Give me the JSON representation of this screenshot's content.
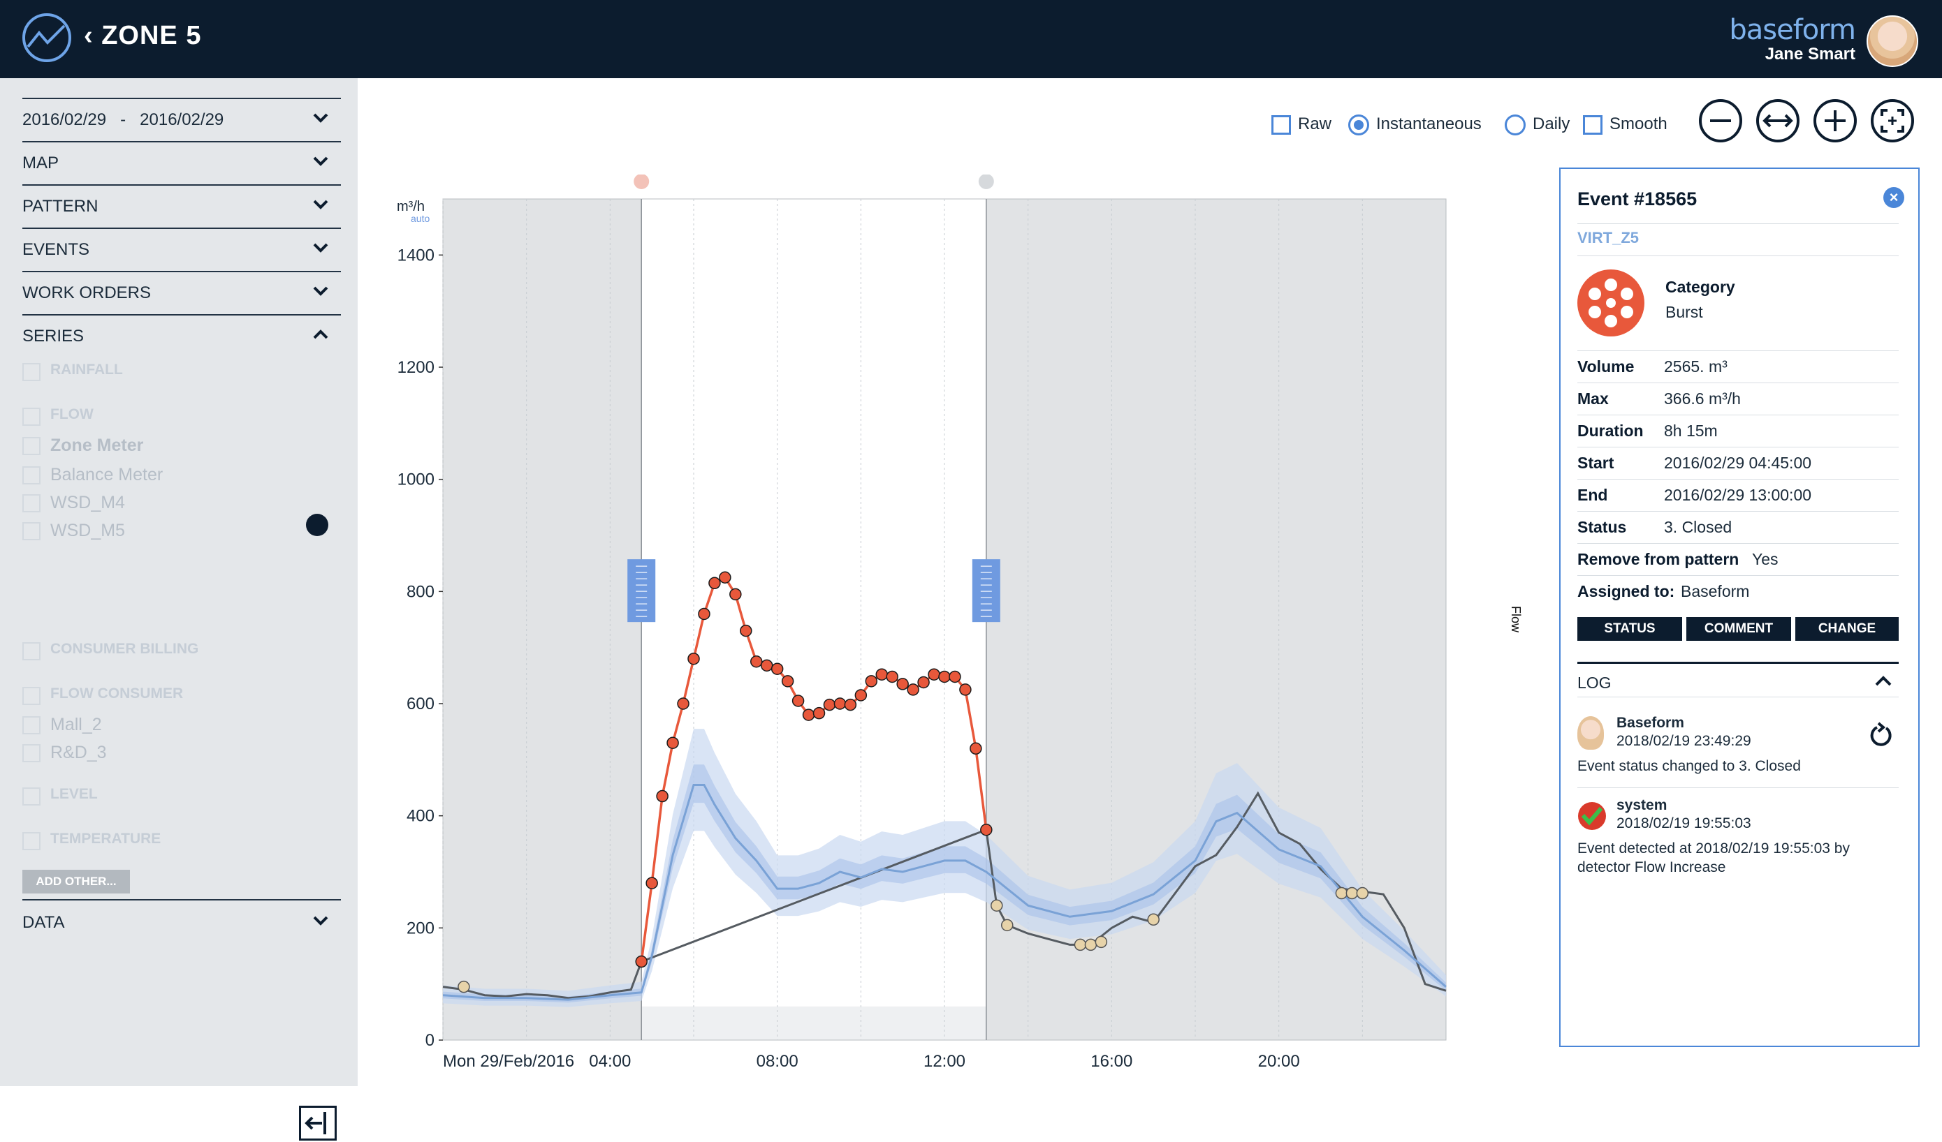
{
  "header": {
    "zone_title": "ZONE 5",
    "brand": "baseform",
    "user_name": "Jane Smart"
  },
  "sidebar": {
    "date_from": "2016/02/29",
    "date_sep": "-",
    "date_to": "2016/02/29",
    "sections": [
      "MAP",
      "PATTERN",
      "EVENTS",
      "WORK ORDERS",
      "SERIES"
    ],
    "series_groups": {
      "rainfall": "RAINFALL",
      "flow": "FLOW",
      "zone_meter": "Zone Meter",
      "balance_meter": "Balance Meter",
      "wsd_m4": "WSD_M4",
      "wsd_m5": "WSD_M5",
      "consumer_billing": "CONSUMER BILLING",
      "flow_consumer": "FLOW CONSUMER",
      "mall_2": "Mall_2",
      "rd_3": "R&D_3",
      "level": "LEVEL",
      "temperature": "TEMPERATURE"
    },
    "add_other": "ADD OTHER...",
    "data_section": "DATA"
  },
  "toolbar": {
    "raw": "Raw",
    "instantaneous": "Instantaneous",
    "daily": "Daily",
    "smooth": "Smooth",
    "selected_mode": "Instantaneous"
  },
  "chart_data": {
    "type": "line",
    "y_unit": "m3/h",
    "y_unit_note": "auto",
    "ylim": [
      0,
      1500
    ],
    "yticks": [
      "0",
      "200",
      "400",
      "600",
      "800",
      "1000",
      "1200",
      "1400"
    ],
    "x_start_label": "Mon 29/Feb/2016",
    "xticks": [
      "04:00",
      "08:00",
      "12:00",
      "16:00",
      "20:00"
    ],
    "right_axis_label": "Flow",
    "event_window": {
      "start_hour": 4.75,
      "end_hour": 13.0
    },
    "series": [
      {
        "name": "Zone Meter",
        "color": "#555b61",
        "x": [
          0,
          0.5,
          1,
          1.5,
          2,
          2.5,
          3,
          3.5,
          4,
          4.5,
          4.75,
          13.0,
          13.25,
          13.5,
          14,
          14.5,
          15,
          15.5,
          16,
          16.5,
          17,
          17.5,
          18,
          18.5,
          19,
          19.5,
          20,
          20.5,
          21,
          21.5,
          22,
          22.5,
          23,
          23.5,
          24
        ],
        "y": [
          95,
          90,
          80,
          78,
          82,
          80,
          75,
          78,
          85,
          90,
          140,
          375,
          240,
          205,
          190,
          180,
          170,
          170,
          200,
          220,
          210,
          260,
          310,
          330,
          380,
          440,
          370,
          350,
          305,
          270,
          265,
          260,
          200,
          100,
          88
        ]
      },
      {
        "name": "Event",
        "color": "#e8583b",
        "x": [
          4.75,
          5.0,
          5.25,
          5.5,
          5.75,
          6.0,
          6.25,
          6.5,
          6.75,
          7.0,
          7.25,
          7.5,
          7.75,
          8.0,
          8.25,
          8.5,
          8.75,
          9.0,
          9.25,
          9.5,
          9.75,
          10.0,
          10.25,
          10.5,
          10.75,
          11.0,
          11.25,
          11.5,
          11.75,
          12.0,
          12.25,
          12.5,
          12.75,
          13.0
        ],
        "y": [
          140,
          280,
          435,
          530,
          600,
          680,
          760,
          815,
          825,
          795,
          730,
          675,
          668,
          662,
          640,
          605,
          580,
          583,
          598,
          600,
          598,
          615,
          640,
          652,
          648,
          635,
          625,
          638,
          652,
          648,
          648,
          625,
          520,
          375
        ]
      },
      {
        "name": "Pattern",
        "color": "#7aa2d6",
        "x": [
          0,
          1,
          2,
          3,
          4,
          4.75,
          5,
          5.5,
          6,
          6.25,
          6.5,
          7,
          7.5,
          8,
          8.5,
          9,
          9.5,
          10,
          10.5,
          11,
          11.5,
          12,
          12.5,
          13,
          14,
          15,
          16,
          17,
          18,
          18.5,
          19,
          20,
          21,
          22,
          23,
          24
        ],
        "y": [
          80,
          75,
          75,
          72,
          80,
          85,
          150,
          330,
          455,
          455,
          420,
          360,
          320,
          270,
          270,
          280,
          300,
          290,
          305,
          300,
          310,
          320,
          320,
          300,
          240,
          220,
          230,
          260,
          320,
          390,
          405,
          340,
          310,
          220,
          160,
          95
        ]
      }
    ],
    "low_markers": [
      {
        "x": 0.5,
        "y": 95
      },
      {
        "x": 13.25,
        "y": 240
      },
      {
        "x": 13.5,
        "y": 205
      },
      {
        "x": 15.25,
        "y": 170
      },
      {
        "x": 15.5,
        "y": 170
      },
      {
        "x": 15.75,
        "y": 175
      },
      {
        "x": 17.0,
        "y": 215
      },
      {
        "x": 21.5,
        "y": 262
      },
      {
        "x": 21.75,
        "y": 262
      },
      {
        "x": 22.0,
        "y": 262
      }
    ]
  },
  "event": {
    "title": "Event #18565",
    "zone": "VIRT_Z5",
    "category_label": "Category",
    "category_value": "Burst",
    "rows": [
      {
        "k": "Volume",
        "v": "2565. m³"
      },
      {
        "k": "Max",
        "v": "366.6 m³/h"
      },
      {
        "k": "Duration",
        "v": "8h 15m"
      },
      {
        "k": "Start",
        "v": "2016/02/29 04:45:00"
      },
      {
        "k": "End",
        "v": "2016/02/29 13:00:00"
      },
      {
        "k": "Status",
        "v": "3. Closed"
      }
    ],
    "remove_label": "Remove from pattern",
    "remove_value": "Yes",
    "assigned_label": "Assigned to:",
    "assigned_value": "Baseform",
    "buttons": [
      "STATUS",
      "COMMENT",
      "CHANGE"
    ],
    "log_title": "LOG",
    "log": [
      {
        "author": "Baseform",
        "time": "2018/02/19 23:49:29",
        "text": "Event status changed to 3. Closed"
      },
      {
        "author": "system",
        "time": "2018/02/19 19:55:03",
        "text": "Event detected at 2018/02/19 19:55:03 by detector Flow Increase"
      }
    ]
  }
}
